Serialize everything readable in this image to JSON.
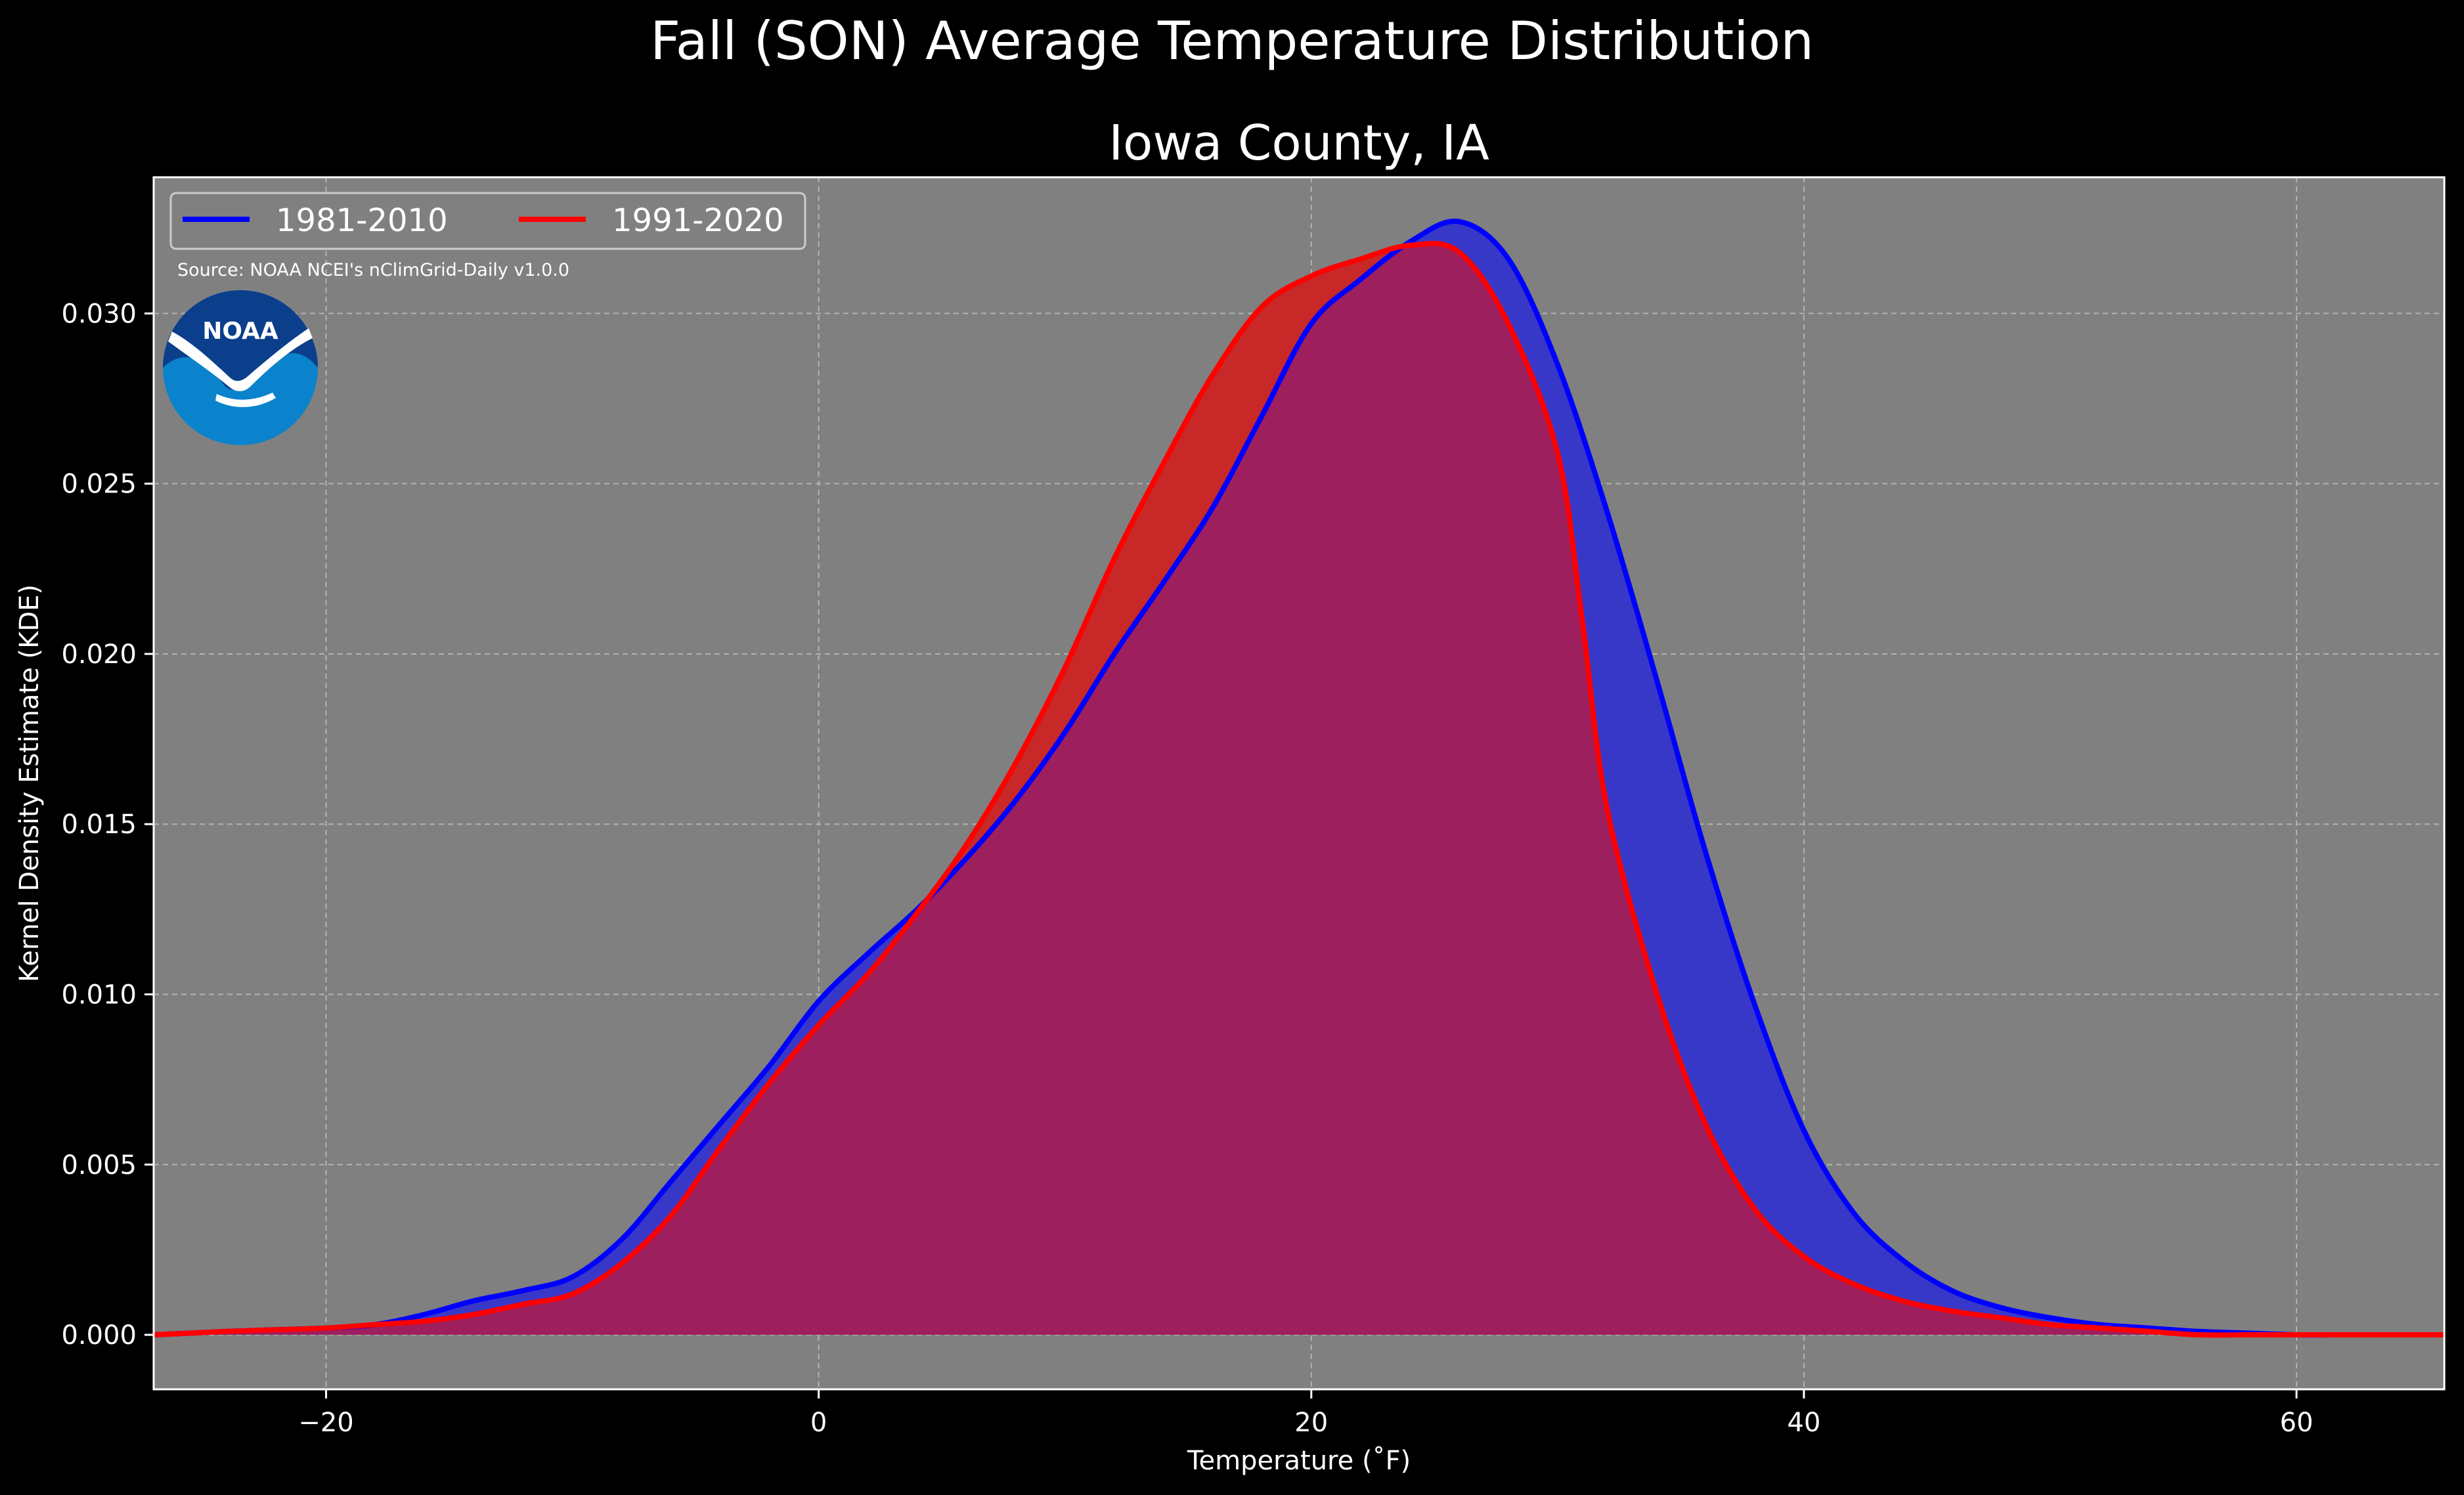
{
  "chart_data": {
    "type": "area",
    "title": "Fall (SON) Average Temperature Distribution",
    "subtitle": "Iowa County, IA",
    "xlabel": "Temperature (˚F)",
    "ylabel": "Kernel Density Estimate (KDE)",
    "source": "Source: NOAA NCEI's nClimGrid-Daily v1.0.0",
    "logo_text": "NOAA",
    "xlim": [
      -27,
      66
    ],
    "ylim": [
      -0.0016,
      0.034
    ],
    "xticks": [
      -20,
      0,
      20,
      40,
      60
    ],
    "xtick_labels": [
      "−20",
      "0",
      "20",
      "40",
      "60"
    ],
    "yticks": [
      0.0,
      0.005,
      0.01,
      0.015,
      0.02,
      0.025,
      0.03
    ],
    "ytick_labels": [
      "0.000",
      "0.005",
      "0.010",
      "0.015",
      "0.020",
      "0.025",
      "0.030"
    ],
    "grid": true,
    "legend_position": "top-left",
    "colors": {
      "figure_background": "#000000",
      "axes_background": "#808080",
      "grid": "#b3b3b3",
      "fill_overlap": "#9e1f5e"
    },
    "series": [
      {
        "name": "1981-2010",
        "color": "#0000ff",
        "fill_color": "#3838c8",
        "x": [
          -27,
          -24,
          -22,
          -20,
          -18,
          -16,
          -14,
          -12,
          -10,
          -8,
          -6,
          -4,
          -2,
          0,
          2,
          4,
          6,
          8,
          10,
          12,
          14,
          16,
          18,
          20,
          22,
          24,
          26,
          28,
          30,
          32,
          34,
          36,
          38,
          40,
          42,
          44,
          46,
          48,
          50,
          52,
          54,
          56,
          58,
          60,
          62,
          64,
          66
        ],
        "y": [
          0.0,
          0.0001,
          0.00015,
          0.0002,
          0.0003,
          0.0006,
          0.001,
          0.0013,
          0.0017,
          0.0028,
          0.0045,
          0.0062,
          0.0079,
          0.0098,
          0.0112,
          0.0125,
          0.014,
          0.0157,
          0.0177,
          0.02,
          0.0221,
          0.0243,
          0.027,
          0.0297,
          0.031,
          0.0321,
          0.0327,
          0.0316,
          0.0285,
          0.0242,
          0.0193,
          0.0142,
          0.0097,
          0.006,
          0.0036,
          0.0022,
          0.0013,
          0.0008,
          0.0005,
          0.0003,
          0.0002,
          0.0001,
          5e-05,
          0.0,
          0.0,
          0.0,
          0.0
        ]
      },
      {
        "name": "1991-2020",
        "color": "#ff0000",
        "fill_color": "#c82828",
        "x": [
          -27,
          -24,
          -22,
          -20,
          -18,
          -16,
          -14,
          -12,
          -10,
          -8,
          -6,
          -4,
          -2,
          0,
          2,
          4,
          6,
          8,
          10,
          12,
          14,
          16,
          18,
          20,
          22,
          24,
          26,
          28,
          30,
          31,
          32,
          34,
          36,
          38,
          40,
          42,
          44,
          46,
          48,
          50,
          52,
          54,
          56,
          58,
          60,
          62,
          64,
          66
        ],
        "y": [
          0.0,
          0.0001,
          0.00015,
          0.0002,
          0.0003,
          0.0004,
          0.0006,
          0.0009,
          0.0012,
          0.0021,
          0.0035,
          0.0055,
          0.0074,
          0.0091,
          0.0106,
          0.0124,
          0.0144,
          0.0168,
          0.0196,
          0.0228,
          0.0256,
          0.0282,
          0.0302,
          0.0311,
          0.0316,
          0.032,
          0.0318,
          0.0297,
          0.0259,
          0.021,
          0.0155,
          0.0101,
          0.0062,
          0.0037,
          0.0023,
          0.0015,
          0.001,
          0.0007,
          0.0005,
          0.0003,
          0.0002,
          0.0001,
          0.0,
          0.0,
          0.0,
          0.0,
          0.0,
          0.0
        ]
      }
    ]
  }
}
